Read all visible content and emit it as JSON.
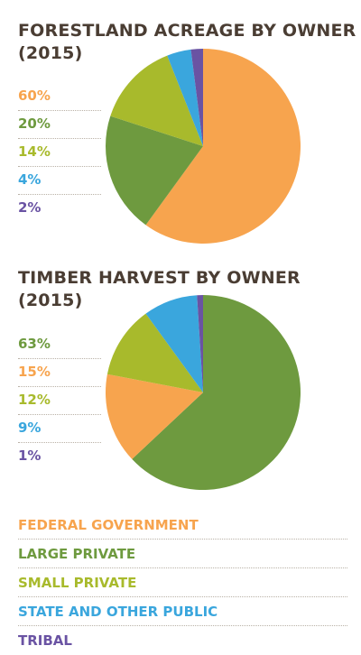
{
  "colors": {
    "federal": "#F7A44E",
    "large_private": "#6E9A3F",
    "small_private": "#A8BA2C",
    "state_public": "#3AA6DD",
    "tribal": "#6A53A3",
    "title": "#4a3d33"
  },
  "chart_data": [
    {
      "type": "pie",
      "title": "FORESTLAND ACREAGE BY OWNER\n(2015)",
      "slices": [
        {
          "name": "FEDERAL GOVERNMENT",
          "value": 60,
          "label": "60%",
          "color": "#F7A44E"
        },
        {
          "name": "LARGE PRIVATE",
          "value": 20,
          "label": "20%",
          "color": "#6E9A3F"
        },
        {
          "name": "SMALL PRIVATE",
          "value": 14,
          "label": "14%",
          "color": "#A8BA2C"
        },
        {
          "name": "STATE AND OTHER PUBLIC",
          "value": 4,
          "label": "4%",
          "color": "#3AA6DD"
        },
        {
          "name": "TRIBAL",
          "value": 2,
          "label": "2%",
          "color": "#6A53A3"
        }
      ]
    },
    {
      "type": "pie",
      "title": "TIMBER HARVEST BY OWNER\n(2015)",
      "slices": [
        {
          "name": "LARGE PRIVATE",
          "value": 63,
          "label": "63%",
          "color": "#6E9A3F"
        },
        {
          "name": "FEDERAL GOVERNMENT",
          "value": 15,
          "label": "15%",
          "color": "#F7A44E"
        },
        {
          "name": "SMALL PRIVATE",
          "value": 12,
          "label": "12%",
          "color": "#A8BA2C"
        },
        {
          "name": "STATE AND OTHER PUBLIC",
          "value": 9,
          "label": "9%",
          "color": "#3AA6DD"
        },
        {
          "name": "TRIBAL",
          "value": 1,
          "label": "1%",
          "color": "#6A53A3"
        }
      ]
    }
  ],
  "legend": [
    {
      "label": "FEDERAL GOVERNMENT",
      "color": "#F7A44E"
    },
    {
      "label": "LARGE PRIVATE",
      "color": "#6E9A3F"
    },
    {
      "label": "SMALL PRIVATE",
      "color": "#A8BA2C"
    },
    {
      "label": "STATE AND OTHER PUBLIC",
      "color": "#3AA6DD"
    },
    {
      "label": "TRIBAL",
      "color": "#6A53A3"
    }
  ]
}
